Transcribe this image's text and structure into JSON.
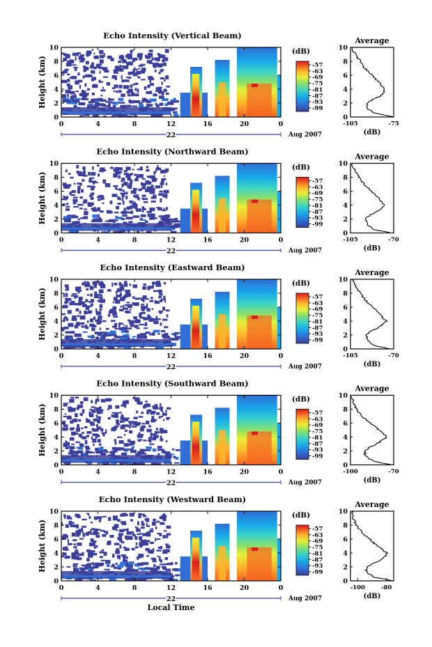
{
  "chart_data": {
    "type": "heatmap",
    "units": "(dB)",
    "colorbar_ticks": [
      "-57",
      "-63",
      "-69",
      "-75",
      "-81",
      "-87",
      "-93",
      "-99"
    ],
    "colorbar_range": [
      -99,
      -57
    ],
    "colors": [
      "#3b3f9a",
      "#2f6fd6",
      "#18a9e8",
      "#3cd3c6",
      "#8be06a",
      "#e7ef38",
      "#fcb62c",
      "#f46422",
      "#d81d1d"
    ],
    "x_ticks": [
      "0",
      "4",
      "8",
      "12",
      "16",
      "20",
      "0"
    ],
    "x_range": [
      0,
      24
    ],
    "date_label": "22",
    "month_label": "Aug 2007",
    "xlabel": "Local Time",
    "ylabel": "Height (km)",
    "y_ticks": [
      "0",
      "2",
      "4",
      "6",
      "8",
      "10"
    ],
    "y_range": [
      0,
      10
    ],
    "avg_title": "Average",
    "avg_xlabel": "(dB)",
    "panels": [
      {
        "title": "Echo Intensity (Vertical Beam)",
        "avg_ticks": [
          "-105",
          "-75"
        ],
        "avg_range": [
          -105,
          -75
        ],
        "profile": {
          "heights": [
            0,
            0.5,
            1,
            1.5,
            2,
            2.5,
            3,
            3.5,
            4,
            4.5,
            5,
            5.5,
            6,
            6.5,
            7,
            7.5,
            8,
            8.5,
            9,
            9.5,
            10
          ],
          "values": [
            -75,
            -87,
            -92,
            -94,
            -93,
            -90,
            -84,
            -82,
            -81,
            -84,
            -85,
            -88,
            -90,
            -92,
            -95,
            -97,
            -98,
            -100,
            -101,
            -103,
            -104
          ]
        }
      },
      {
        "title": "Echo Intensity (Northward Beam)",
        "avg_ticks": [
          "-105",
          "-70"
        ],
        "avg_range": [
          -105,
          -70
        ],
        "profile": {
          "heights": [
            0,
            0.5,
            1,
            1.5,
            2,
            2.5,
            3,
            3.5,
            4,
            4.5,
            5,
            5.5,
            6,
            6.5,
            7,
            7.5,
            8,
            8.5,
            9,
            9.5,
            10
          ],
          "values": [
            -72,
            -86,
            -90,
            -92,
            -93,
            -90,
            -84,
            -80,
            -78,
            -80,
            -82,
            -85,
            -88,
            -91,
            -94,
            -96,
            -98,
            -100,
            -101,
            -103,
            -104
          ]
        }
      },
      {
        "title": "Echo Intensity (Eastward Beam)",
        "avg_ticks": [
          "-105",
          "-70"
        ],
        "avg_range": [
          -105,
          -70
        ],
        "profile": {
          "heights": [
            0,
            0.5,
            1,
            1.5,
            2,
            2.5,
            3,
            3.5,
            4,
            4.5,
            5,
            5.5,
            6,
            6.5,
            7,
            7.5,
            8,
            8.5,
            9,
            9.5,
            10
          ],
          "values": [
            -73,
            -86,
            -90,
            -92,
            -92,
            -89,
            -83,
            -79,
            -76,
            -79,
            -81,
            -84,
            -87,
            -90,
            -93,
            -95,
            -97,
            -99,
            -101,
            -102,
            -104
          ]
        }
      },
      {
        "title": "Echo Intensity (Southward Beam)",
        "avg_ticks": [
          "-100",
          "-70"
        ],
        "avg_range": [
          -100,
          -70
        ],
        "profile": {
          "heights": [
            0,
            0.5,
            1,
            1.5,
            2,
            2.5,
            3,
            3.5,
            4,
            4.5,
            5,
            5.5,
            6,
            6.5,
            7,
            7.5,
            8,
            8.5,
            9,
            9.5,
            10
          ],
          "values": [
            -71,
            -84,
            -88,
            -90,
            -90,
            -87,
            -82,
            -78,
            -75,
            -77,
            -80,
            -83,
            -86,
            -89,
            -92,
            -94,
            -96,
            -97,
            -98,
            -99,
            -100
          ]
        }
      },
      {
        "title": "Echo Intensity (Westward Beam)",
        "avg_ticks": [
          "-100",
          "-80"
        ],
        "avg_range": [
          -105,
          -75
        ],
        "profile": {
          "heights": [
            0,
            0.5,
            1,
            1.5,
            2,
            2.5,
            3,
            3.5,
            4,
            4.5,
            5,
            5.5,
            6,
            6.5,
            7,
            7.5,
            8,
            8.5,
            9,
            9.5,
            10
          ],
          "values": [
            -75,
            -88,
            -92,
            -94,
            -93,
            -89,
            -84,
            -81,
            -80,
            -83,
            -86,
            -89,
            -92,
            -95,
            -97,
            -99,
            -101,
            -102,
            -103,
            -104,
            -104
          ]
        }
      }
    ]
  }
}
